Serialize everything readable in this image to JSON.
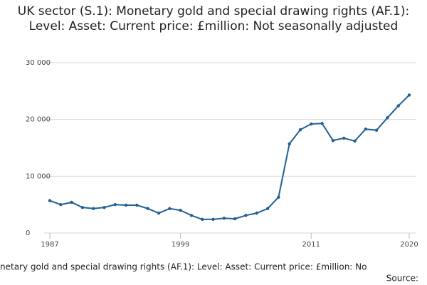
{
  "chart_data": {
    "type": "line",
    "title": "UK sector (S.1): Monetary gold and special drawing rights (AF.1): Level: Asset: Current price: £million: Not seasonally adjusted",
    "x": [
      1987,
      1988,
      1989,
      1990,
      1991,
      1992,
      1993,
      1994,
      1995,
      1996,
      1997,
      1998,
      1999,
      2000,
      2001,
      2002,
      2003,
      2004,
      2005,
      2006,
      2007,
      2008,
      2009,
      2010,
      2011,
      2012,
      2013,
      2014,
      2015,
      2016,
      2017,
      2018,
      2019,
      2020
    ],
    "series": [
      {
        "name": "UK sector (S.1): Monetary gold and special drawing rights (AF.1)",
        "color": "#206095",
        "values": [
          5700,
          5000,
          5400,
          4500,
          4300,
          4500,
          5000,
          4900,
          4900,
          4300,
          3500,
          4300,
          4000,
          3100,
          2400,
          2400,
          2600,
          2500,
          3100,
          3500,
          4300,
          6300,
          15700,
          18200,
          19200,
          19300,
          16300,
          16700,
          16200,
          18300,
          18100,
          20300,
          22400,
          24300
        ]
      }
    ],
    "xlim": [
      1987,
      2020
    ],
    "xticks": [
      1987,
      1999,
      2011,
      2020
    ],
    "ylim": [
      0,
      30000
    ],
    "yticks": [
      0,
      {
        "value": 10000,
        "label": "10 000"
      },
      {
        "value": 20000,
        "label": "20 000"
      },
      {
        "value": 30000,
        "label": "30 000"
      }
    ],
    "grid": true,
    "caption": "netary gold and special drawing rights (AF.1): Level: Asset: Current price: £million: No",
    "source": "Source:"
  }
}
